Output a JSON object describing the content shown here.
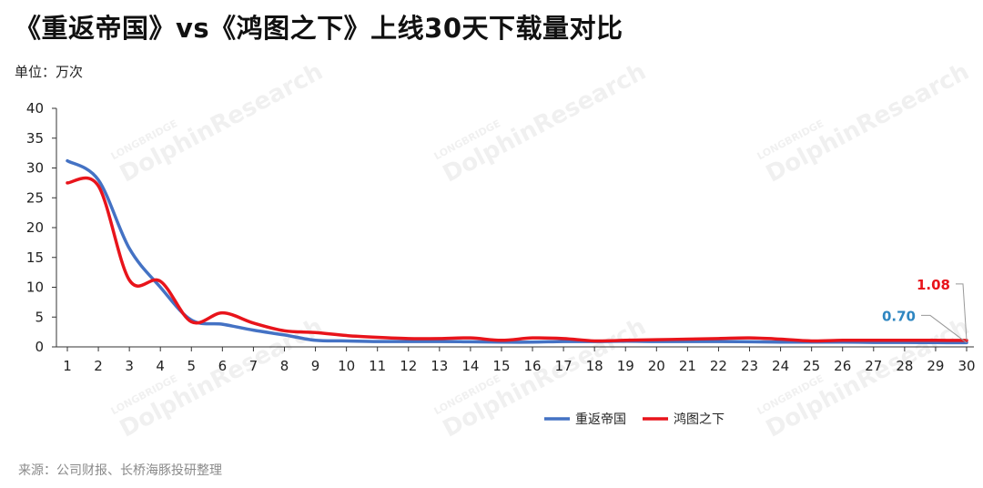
{
  "header": {
    "title": "《重返帝国》vs《鸿图之下》上线30天下载量对比",
    "unit": "单位：万次"
  },
  "footer": {
    "source": "来源：公司财报、长桥海豚投研整理"
  },
  "watermark": {
    "brand": "DolphinResearch",
    "sub": "LONGBRIDGE"
  },
  "colors": {
    "series_a": "#4472C4",
    "series_b": "#E8141B",
    "label_a": "#2E86C1",
    "label_b": "#E8141B"
  },
  "chart_data": {
    "type": "line",
    "title": "《重返帝国》vs《鸿图之下》上线30天下载量对比",
    "xlabel": "",
    "ylabel": "单位：万次",
    "ylim": [
      0,
      40
    ],
    "yticks": [
      0,
      5,
      10,
      15,
      20,
      25,
      30,
      35,
      40
    ],
    "x": [
      1,
      2,
      3,
      4,
      5,
      6,
      7,
      8,
      9,
      10,
      11,
      12,
      13,
      14,
      15,
      16,
      17,
      18,
      19,
      20,
      21,
      22,
      23,
      24,
      25,
      26,
      27,
      28,
      29,
      30
    ],
    "series": [
      {
        "name": "重返帝国",
        "values": [
          31.2,
          28.0,
          16.5,
          10.0,
          4.5,
          3.8,
          2.8,
          2.0,
          1.1,
          1.0,
          0.9,
          0.9,
          0.9,
          0.85,
          0.8,
          0.8,
          0.9,
          0.9,
          0.95,
          0.9,
          0.9,
          0.9,
          0.85,
          0.8,
          0.8,
          0.8,
          0.75,
          0.75,
          0.72,
          0.7
        ],
        "end_label": "0.70"
      },
      {
        "name": "鸿图之下",
        "values": [
          27.5,
          27.0,
          11.2,
          11.0,
          4.2,
          5.7,
          4.0,
          2.7,
          2.4,
          1.9,
          1.6,
          1.4,
          1.4,
          1.5,
          1.1,
          1.5,
          1.4,
          1.0,
          1.1,
          1.2,
          1.3,
          1.4,
          1.5,
          1.3,
          1.0,
          1.1,
          1.1,
          1.1,
          1.1,
          1.08
        ],
        "end_label": "1.08"
      }
    ],
    "legend_position": "bottom-right",
    "grid": false
  }
}
